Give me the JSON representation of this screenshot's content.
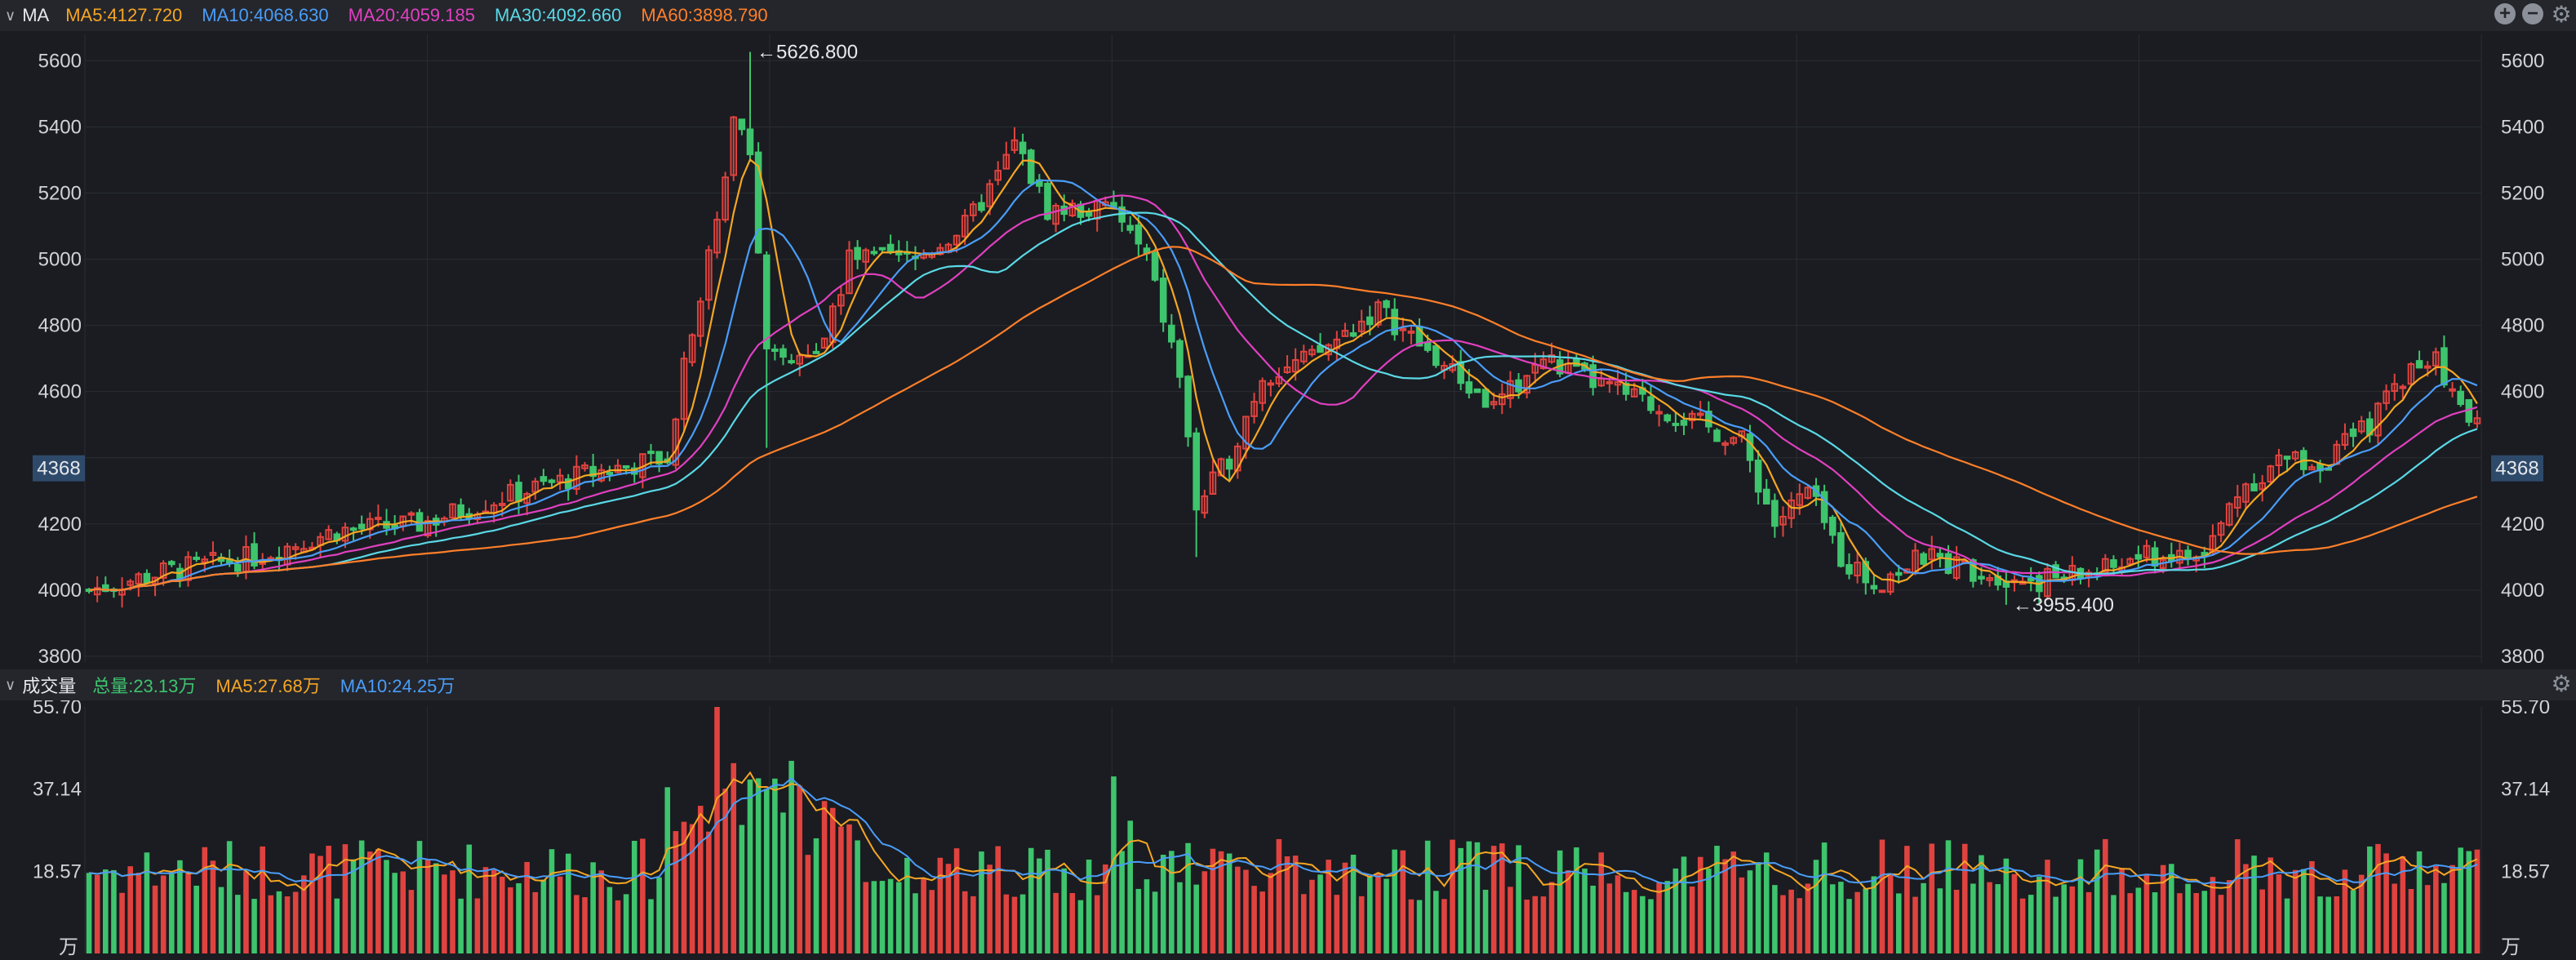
{
  "main_panel": {
    "title": "MA",
    "indicators": [
      {
        "label": "MA5:4127.720",
        "color": "#f5a623"
      },
      {
        "label": "MA10:4068.630",
        "color": "#4a9df8"
      },
      {
        "label": "MA20:4059.185",
        "color": "#e040c0"
      },
      {
        "label": "MA30:4092.660",
        "color": "#5ad8e6"
      },
      {
        "label": "MA60:3898.790",
        "color": "#ff7f2a"
      }
    ],
    "current_price_tag": "4368"
  },
  "volume_panel": {
    "title": "成交量",
    "indicators": [
      {
        "label": "总量:23.13万",
        "color": "#3ec46d"
      },
      {
        "label": "MA5:27.68万",
        "color": "#f5a623"
      },
      {
        "label": "MA10:24.25万",
        "color": "#4a9df8"
      }
    ],
    "unit": "万"
  },
  "chart_data": [
    {
      "type": "candlestick",
      "ylim": [
        3780,
        5680
      ],
      "y_ticks": [
        "5600",
        "5400",
        "5200",
        "5000",
        "4800",
        "4600",
        "4368",
        "4200",
        "4000",
        "3800"
      ],
      "annotations": [
        {
          "label": "←5626.800",
          "x": 80,
          "y": 5626.8
        },
        {
          "label": "←3955.400",
          "x": 232,
          "y": 3955.4
        }
      ],
      "current_value": 4368,
      "n_bars": 290,
      "anchors": [
        [
          0,
          4000
        ],
        [
          10,
          4060
        ],
        [
          20,
          4100
        ],
        [
          30,
          4180
        ],
        [
          40,
          4200
        ],
        [
          50,
          4280
        ],
        [
          60,
          4350
        ],
        [
          70,
          4400
        ],
        [
          72,
          4700
        ],
        [
          76,
          5100
        ],
        [
          78,
          5450
        ],
        [
          80,
          5350
        ],
        [
          82,
          4700
        ],
        [
          88,
          4700
        ],
        [
          92,
          5000
        ],
        [
          100,
          5000
        ],
        [
          106,
          5100
        ],
        [
          110,
          5250
        ],
        [
          112,
          5350
        ],
        [
          116,
          5150
        ],
        [
          120,
          5150
        ],
        [
          124,
          5150
        ],
        [
          128,
          5000
        ],
        [
          132,
          4650
        ],
        [
          134,
          4250
        ],
        [
          138,
          4400
        ],
        [
          142,
          4650
        ],
        [
          148,
          4700
        ],
        [
          156,
          4850
        ],
        [
          162,
          4720
        ],
        [
          170,
          4550
        ],
        [
          176,
          4700
        ],
        [
          180,
          4650
        ],
        [
          190,
          4550
        ],
        [
          200,
          4450
        ],
        [
          204,
          4200
        ],
        [
          208,
          4300
        ],
        [
          212,
          4100
        ],
        [
          216,
          4020
        ],
        [
          222,
          4100
        ],
        [
          230,
          4050
        ],
        [
          236,
          4030
        ],
        [
          244,
          4060
        ],
        [
          248,
          4100
        ],
        [
          256,
          4100
        ],
        [
          260,
          4300
        ],
        [
          266,
          4400
        ],
        [
          270,
          4380
        ],
        [
          276,
          4500
        ],
        [
          280,
          4650
        ],
        [
          284,
          4700
        ],
        [
          288,
          4500
        ]
      ],
      "ma_lines": [
        {
          "name": "MA5",
          "color": "#f5a623",
          "period": 5
        },
        {
          "name": "MA10",
          "color": "#4a9df8",
          "period": 10
        },
        {
          "name": "MA20",
          "color": "#e040c0",
          "period": 20
        },
        {
          "name": "MA30",
          "color": "#5ad8e6",
          "period": 30
        },
        {
          "name": "MA60",
          "color": "#ff7f2a",
          "period": 60
        }
      ],
      "colors": {
        "up": "#e0433f",
        "down": "#3ec46d"
      }
    },
    {
      "type": "bar",
      "ylim": [
        0,
        55.7
      ],
      "y_ticks": [
        "55.70",
        "37.14",
        "18.57"
      ],
      "unit": "万",
      "colors": {
        "up": "#e0433f",
        "down": "#3ec46d"
      }
    }
  ]
}
